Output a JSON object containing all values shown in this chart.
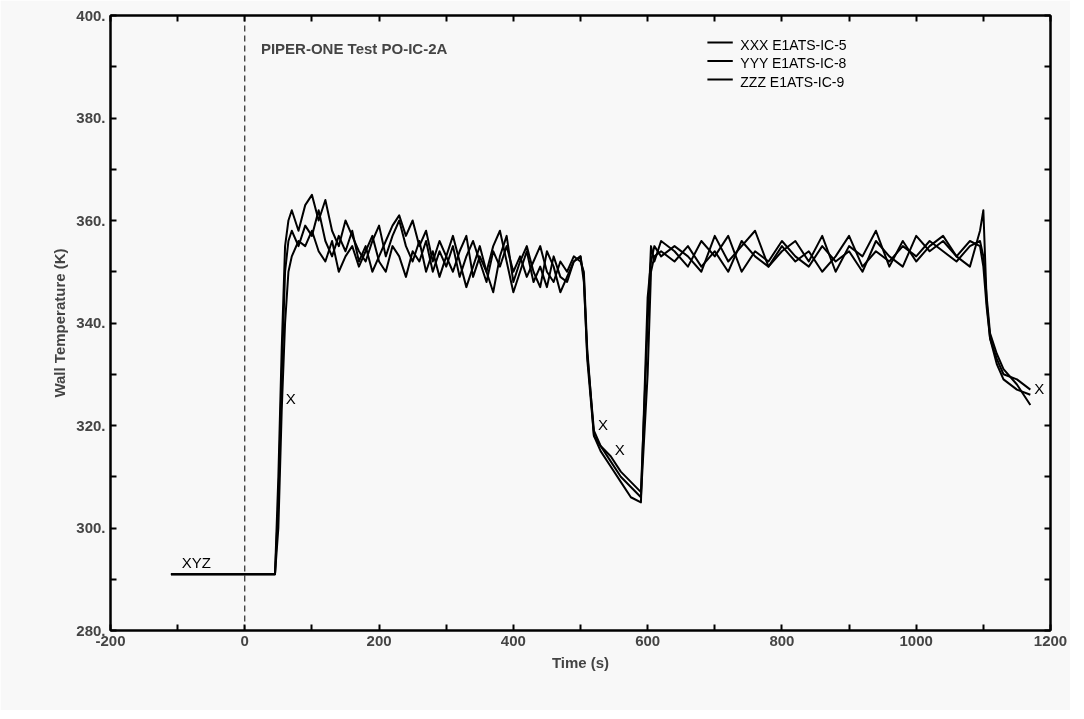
{
  "chart_data": {
    "type": "line",
    "title": "PIPER-ONE Test  PO-IC-2A",
    "xlabel": "Time (s)",
    "ylabel": "Wall Temperature (K)",
    "x": [
      -110,
      45,
      50,
      55,
      60,
      65,
      70,
      80,
      90,
      100,
      110,
      120,
      130,
      140,
      150,
      160,
      170,
      180,
      190,
      200,
      210,
      220,
      230,
      240,
      250,
      260,
      270,
      280,
      290,
      300,
      310,
      320,
      330,
      340,
      350,
      360,
      370,
      380,
      390,
      400,
      410,
      420,
      430,
      440,
      450,
      460,
      470,
      480,
      490,
      500,
      505,
      510,
      520,
      530,
      545,
      560,
      575,
      590,
      600,
      605,
      610,
      620,
      640,
      660,
      680,
      700,
      720,
      740,
      760,
      780,
      800,
      820,
      840,
      860,
      880,
      900,
      920,
      940,
      960,
      980,
      1000,
      1020,
      1040,
      1060,
      1080,
      1095,
      1100,
      1105,
      1110,
      1120,
      1130,
      1150,
      1170
    ],
    "series": [
      {
        "name": "XXX   E1ATS-IC-5",
        "color": "#000000",
        "values": [
          291,
          291,
          300,
          323,
          340,
          350,
          353,
          356,
          355,
          358,
          354,
          352,
          356,
          350,
          353,
          355,
          351,
          354,
          357,
          352,
          350,
          355,
          353,
          349,
          354,
          352,
          356,
          350,
          354,
          351,
          355,
          349,
          353,
          356,
          352,
          348,
          354,
          351,
          355,
          350,
          353,
          349,
          352,
          355,
          350,
          348,
          352,
          350,
          353,
          352,
          350,
          335,
          318,
          316,
          313,
          310,
          308,
          306,
          330,
          350,
          353,
          354,
          352,
          355,
          351,
          354,
          350,
          356,
          353,
          351,
          355,
          352,
          354,
          350,
          353,
          357,
          351,
          354,
          352,
          355,
          353,
          356,
          354,
          352,
          355,
          356,
          353,
          345,
          338,
          334,
          331,
          328,
          324
        ]
      },
      {
        "name": "YYY   E1ATS-IC-8",
        "color": "#000000",
        "values": [
          291,
          291,
          310,
          335,
          355,
          360,
          362,
          358,
          363,
          365,
          360,
          364,
          358,
          355,
          360,
          357,
          354,
          352,
          356,
          359,
          353,
          357,
          360,
          355,
          352,
          356,
          350,
          354,
          349,
          353,
          357,
          352,
          347,
          351,
          355,
          350,
          346,
          353,
          357,
          348,
          352,
          355,
          350,
          347,
          354,
          351,
          346,
          349,
          352,
          353,
          348,
          334,
          319,
          316,
          314,
          311,
          309,
          307,
          340,
          355,
          352,
          356,
          354,
          351,
          356,
          353,
          357,
          350,
          354,
          352,
          356,
          353,
          351,
          355,
          352,
          354,
          350,
          356,
          353,
          351,
          357,
          354,
          356,
          353,
          351,
          358,
          362,
          344,
          337,
          333,
          330,
          329,
          327
        ]
      },
      {
        "name": "ZZZ   E1ATS-IC-9",
        "color": "#000000",
        "values": [
          291,
          291,
          305,
          330,
          350,
          356,
          358,
          355,
          359,
          357,
          362,
          356,
          353,
          357,
          354,
          358,
          352,
          355,
          350,
          353,
          356,
          359,
          361,
          357,
          360,
          355,
          358,
          352,
          356,
          353,
          350,
          354,
          357,
          349,
          353,
          350,
          355,
          358,
          352,
          346,
          350,
          354,
          348,
          351,
          347,
          353,
          349,
          348,
          352,
          353,
          349,
          333,
          318,
          315,
          312,
          309,
          306,
          305,
          345,
          352,
          355,
          353,
          355,
          353,
          350,
          357,
          352,
          355,
          358,
          351,
          354,
          356,
          352,
          357,
          350,
          355,
          353,
          358,
          351,
          356,
          352,
          355,
          357,
          353,
          356,
          355,
          351,
          343,
          337,
          332,
          329,
          327,
          326
        ]
      }
    ],
    "annotations": [
      {
        "text": "XYZ",
        "x": -100,
        "y": 291
      },
      {
        "text": "X",
        "x": 55,
        "y": 323
      },
      {
        "text": "X",
        "x": 520,
        "y": 318
      },
      {
        "text": "X",
        "x": 545,
        "y": 313
      },
      {
        "text": "X",
        "x": 1170,
        "y": 325
      }
    ],
    "ref_lines": [
      {
        "axis": "x",
        "value": 0,
        "label": null,
        "color": "#000000",
        "line_style": "dashed"
      }
    ],
    "xlim": [
      -200,
      1200
    ],
    "ylim": [
      280,
      400
    ],
    "xticks": [
      -200,
      {
        "value": -100,
        "label": null
      },
      0,
      {
        "value": 100,
        "label": null
      },
      200,
      {
        "value": 300,
        "label": null
      },
      400,
      {
        "value": 500,
        "label": null
      },
      600,
      {
        "value": 700,
        "label": null
      },
      800,
      {
        "value": 900,
        "label": null
      },
      1000,
      {
        "value": 1100,
        "label": null
      },
      1200
    ],
    "yticks": [
      {
        "value": 280,
        "label": "280."
      },
      {
        "value": 290,
        "label": null
      },
      {
        "value": 300,
        "label": "300."
      },
      {
        "value": 310,
        "label": null
      },
      {
        "value": 320,
        "label": "320."
      },
      {
        "value": 330,
        "label": null
      },
      {
        "value": 340,
        "label": "340."
      },
      {
        "value": 350,
        "label": null
      },
      {
        "value": 360,
        "label": "360."
      },
      {
        "value": 370,
        "label": null
      },
      {
        "value": 380,
        "label": "380."
      },
      {
        "value": 390,
        "label": null
      },
      {
        "value": 400,
        "label": "400."
      }
    ],
    "grid": false,
    "legend": "top right",
    "marker": "none",
    "line_style": "solid"
  }
}
